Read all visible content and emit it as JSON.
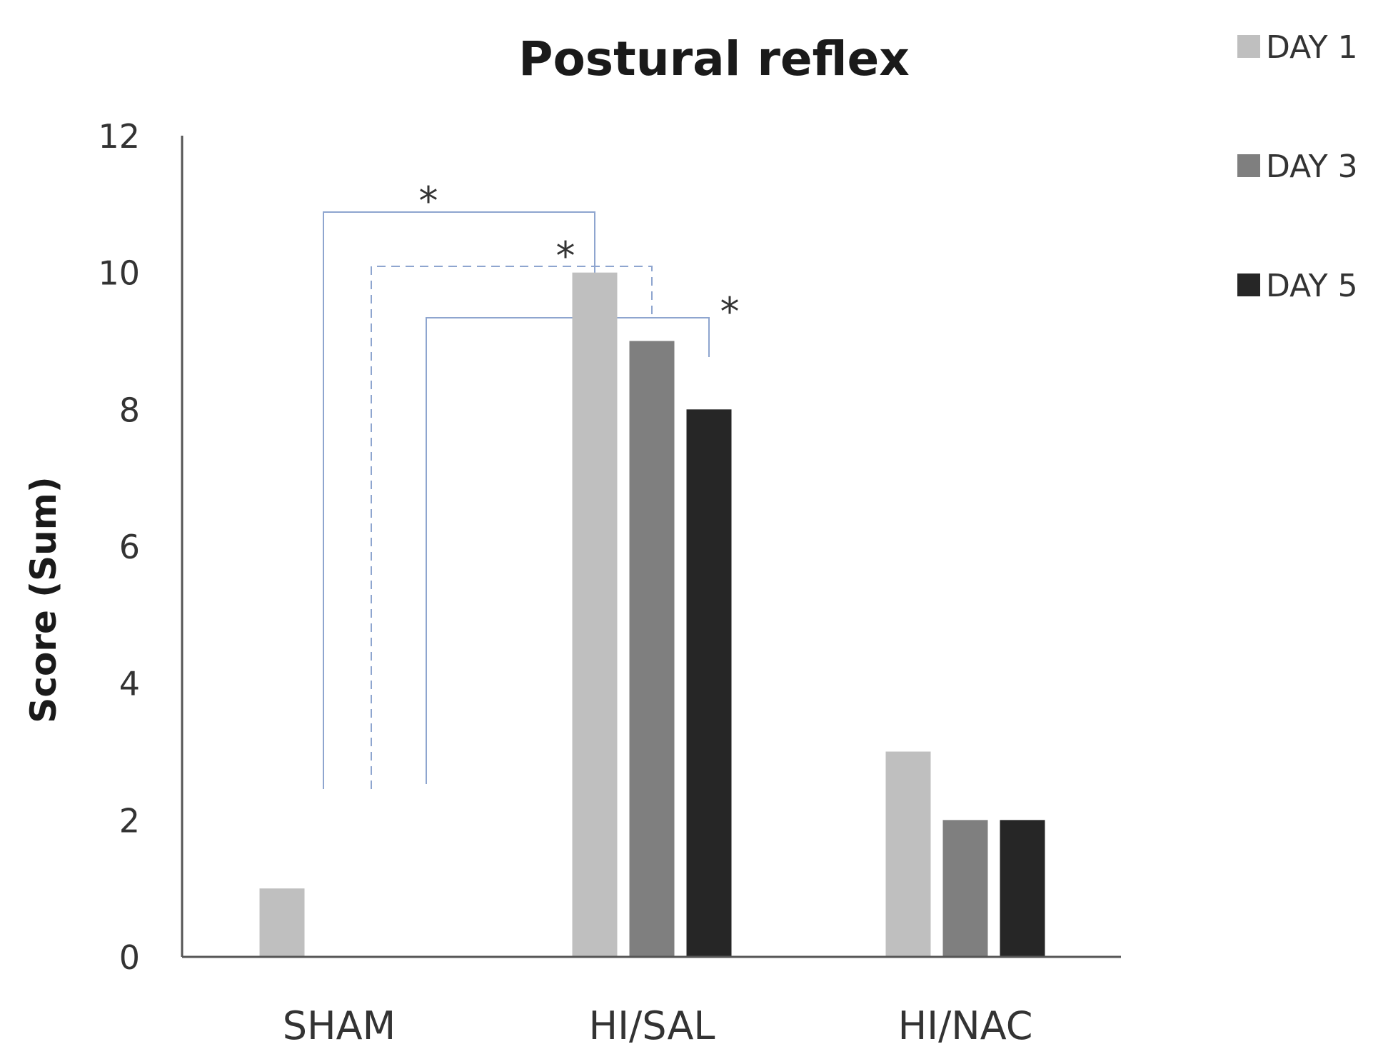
{
  "chart_data": {
    "type": "bar",
    "title": "Postural reflex",
    "xlabel": "",
    "ylabel": "Score (Sum)",
    "ylim": [
      0,
      12
    ],
    "yticks": [
      "0",
      "2",
      "4",
      "6",
      "8",
      "10",
      "12"
    ],
    "categories": [
      "SHAM",
      "HI/SAL",
      "HI/NAC"
    ],
    "series": [
      {
        "name": "DAY 1",
        "color": "#bfbfbf",
        "values": [
          1,
          10,
          3
        ]
      },
      {
        "name": "DAY 3",
        "color": "#7f7f7f",
        "values": [
          0,
          9,
          2
        ]
      },
      {
        "name": "DAY 5",
        "color": "#262626",
        "values": [
          0,
          8,
          2
        ]
      }
    ],
    "grid": false,
    "legend_position": "top-right",
    "significance_brackets": [
      {
        "from_category": "SHAM",
        "to_category": "HI/SAL",
        "to_series": "DAY 1",
        "label": "*",
        "line_style": "solid"
      },
      {
        "from_category": "SHAM",
        "to_category": "HI/SAL",
        "to_series": "DAY 3",
        "label": "*",
        "line_style": "dashed"
      },
      {
        "from_category": "SHAM",
        "to_category": "HI/SAL",
        "to_series": "DAY 5",
        "label": "*",
        "line_style": "solid"
      }
    ],
    "bracket_color": "#8ea5cf"
  }
}
